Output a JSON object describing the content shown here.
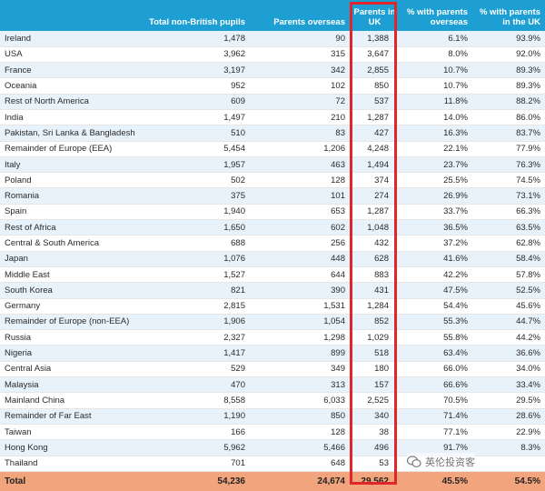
{
  "headers": [
    "",
    "Total non-British pupils",
    "Parents overseas",
    "Parents in UK",
    "% with parents overseas",
    "% with parents in the UK"
  ],
  "rows": [
    [
      "Ireland",
      "1,478",
      "90",
      "1,388",
      "6.1%",
      "93.9%"
    ],
    [
      "USA",
      "3,962",
      "315",
      "3,647",
      "8.0%",
      "92.0%"
    ],
    [
      "France",
      "3,197",
      "342",
      "2,855",
      "10.7%",
      "89.3%"
    ],
    [
      "Oceania",
      "952",
      "102",
      "850",
      "10.7%",
      "89.3%"
    ],
    [
      "Rest of North America",
      "609",
      "72",
      "537",
      "11.8%",
      "88.2%"
    ],
    [
      "India",
      "1,497",
      "210",
      "1,287",
      "14.0%",
      "86.0%"
    ],
    [
      "Pakistan, Sri Lanka & Bangladesh",
      "510",
      "83",
      "427",
      "16.3%",
      "83.7%"
    ],
    [
      "Remainder of Europe (EEA)",
      "5,454",
      "1,206",
      "4,248",
      "22.1%",
      "77.9%"
    ],
    [
      "Italy",
      "1,957",
      "463",
      "1,494",
      "23.7%",
      "76.3%"
    ],
    [
      "Poland",
      "502",
      "128",
      "374",
      "25.5%",
      "74.5%"
    ],
    [
      "Romania",
      "375",
      "101",
      "274",
      "26.9%",
      "73.1%"
    ],
    [
      "Spain",
      "1,940",
      "653",
      "1,287",
      "33.7%",
      "66.3%"
    ],
    [
      "Rest of Africa",
      "1,650",
      "602",
      "1,048",
      "36.5%",
      "63.5%"
    ],
    [
      "Central & South America",
      "688",
      "256",
      "432",
      "37.2%",
      "62.8%"
    ],
    [
      "Japan",
      "1,076",
      "448",
      "628",
      "41.6%",
      "58.4%"
    ],
    [
      "Middle East",
      "1,527",
      "644",
      "883",
      "42.2%",
      "57.8%"
    ],
    [
      "South Korea",
      "821",
      "390",
      "431",
      "47.5%",
      "52.5%"
    ],
    [
      "Germany",
      "2,815",
      "1,531",
      "1,284",
      "54.4%",
      "45.6%"
    ],
    [
      "Remainder of Europe (non-EEA)",
      "1,906",
      "1,054",
      "852",
      "55.3%",
      "44.7%"
    ],
    [
      "Russia",
      "2,327",
      "1,298",
      "1,029",
      "55.8%",
      "44.2%"
    ],
    [
      "Nigeria",
      "1,417",
      "899",
      "518",
      "63.4%",
      "36.6%"
    ],
    [
      "Central Asia",
      "529",
      "349",
      "180",
      "66.0%",
      "34.0%"
    ],
    [
      "Malaysia",
      "470",
      "313",
      "157",
      "66.6%",
      "33.4%"
    ],
    [
      "Mainland China",
      "8,558",
      "6,033",
      "2,525",
      "70.5%",
      "29.5%"
    ],
    [
      "Remainder of Far East",
      "1,190",
      "850",
      "340",
      "71.4%",
      "28.6%"
    ],
    [
      "Taiwan",
      "166",
      "128",
      "38",
      "77.1%",
      "22.9%"
    ],
    [
      "Hong Kong",
      "5,962",
      "5,466",
      "496",
      "91.7%",
      "8.3%"
    ],
    [
      "Thailand",
      "701",
      "648",
      "53",
      "",
      ""
    ]
  ],
  "total": [
    "Total",
    "54,236",
    "24,674",
    "29,562",
    "45.5%",
    "54.5%"
  ],
  "watermark": "英伦投资客",
  "colors": {
    "header_bg": "#1d9fd3",
    "stripe": "#e8f2fa",
    "total_bg": "#f2a57c",
    "highlight_border": "#e0252b"
  }
}
